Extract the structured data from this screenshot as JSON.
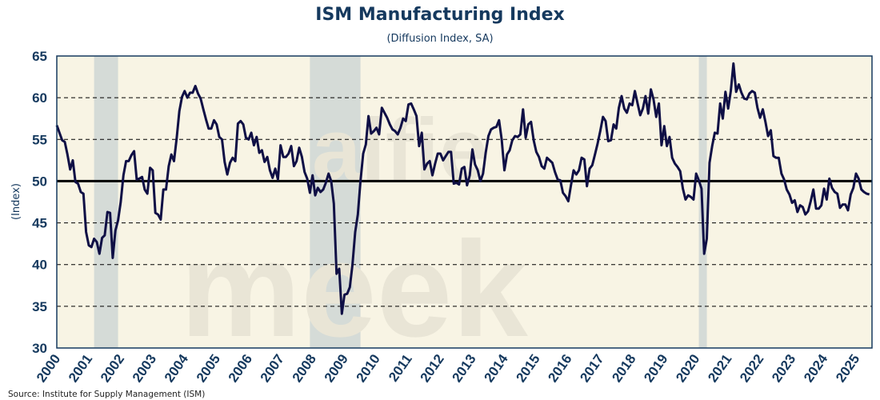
{
  "chart_data": {
    "type": "line",
    "title": "ISM Manufacturing Index",
    "subtitle": "(Diffusion Index, SA)",
    "ylabel": "(Index)",
    "xlabel": "",
    "ylim": [
      30,
      65
    ],
    "yticks": [
      30,
      35,
      40,
      45,
      50,
      55,
      60,
      65
    ],
    "xticks": [
      "2000",
      "2001",
      "2002",
      "2003",
      "2004",
      "2005",
      "2006",
      "2007",
      "2008",
      "2009",
      "2010",
      "2011",
      "2012",
      "2013",
      "2014",
      "2015",
      "2016",
      "2017",
      "2018",
      "2019",
      "2020",
      "2021",
      "2022",
      "2023",
      "2024",
      "2025"
    ],
    "x_start": "2000-01",
    "frequency": "monthly",
    "reference_line": 50,
    "grid": "dashed horizontal",
    "recessions": [
      [
        "2001-03",
        "2001-11"
      ],
      [
        "2007-12",
        "2009-06"
      ],
      [
        "2020-02",
        "2020-04"
      ]
    ],
    "series": [
      {
        "name": "ISM Manufacturing Index",
        "color": "#0f0f45",
        "values": [
          56.7,
          55.8,
          54.9,
          54.7,
          53.2,
          51.4,
          52.5,
          49.9,
          49.7,
          48.7,
          48.5,
          43.9,
          42.3,
          42.1,
          43.1,
          42.7,
          41.3,
          43.2,
          43.5,
          46.3,
          46.2,
          40.8,
          44.1,
          45.3,
          47.5,
          50.7,
          52.4,
          52.4,
          53.1,
          53.6,
          50.2,
          50.3,
          50.5,
          49.0,
          48.5,
          51.6,
          51.3,
          46.2,
          46.0,
          45.4,
          49.0,
          49.0,
          51.8,
          53.2,
          52.4,
          55.2,
          58.4,
          60.1,
          60.8,
          60.0,
          60.6,
          60.6,
          61.4,
          60.5,
          59.9,
          58.6,
          57.4,
          56.3,
          56.3,
          57.3,
          56.8,
          55.3,
          55.0,
          52.3,
          50.8,
          52.2,
          52.8,
          52.4,
          56.9,
          57.2,
          56.8,
          55.2,
          55.0,
          55.8,
          54.3,
          55.3,
          53.4,
          53.7,
          52.3,
          52.9,
          51.3,
          50.4,
          51.5,
          50.2,
          54.3,
          52.9,
          52.9,
          53.3,
          54.2,
          51.8,
          52.4,
          54.0,
          52.9,
          51.1,
          50.3,
          48.6,
          50.7,
          48.3,
          49.2,
          48.7,
          49.0,
          49.8,
          50.9,
          50.0,
          47.3,
          38.9,
          39.5,
          34.1,
          36.4,
          36.5,
          37.3,
          40.0,
          43.9,
          46.0,
          50.0,
          53.3,
          54.4,
          57.8,
          55.7,
          56.0,
          56.4,
          55.6,
          58.8,
          58.2,
          57.6,
          56.8,
          56.2,
          56.0,
          55.6,
          56.4,
          57.5,
          57.2,
          59.2,
          59.3,
          58.6,
          57.8,
          54.2,
          55.8,
          51.4,
          52.1,
          52.4,
          50.7,
          52.1,
          53.3,
          53.3,
          52.5,
          53.0,
          53.5,
          53.5,
          49.7,
          49.8,
          49.6,
          51.5,
          51.7,
          49.5,
          50.7,
          53.8,
          52.0,
          51.3,
          50.0,
          50.9,
          53.4,
          55.4,
          56.2,
          56.4,
          56.5,
          57.3,
          55.0,
          51.3,
          53.2,
          53.7,
          54.9,
          55.4,
          55.3,
          55.6,
          58.6,
          55.2,
          56.8,
          57.1,
          54.9,
          53.5,
          52.9,
          51.8,
          51.5,
          52.8,
          52.5,
          52.2,
          51.1,
          50.2,
          50.1,
          48.6,
          48.2,
          47.6,
          49.5,
          51.3,
          50.8,
          51.3,
          52.8,
          52.6,
          49.4,
          51.5,
          51.9,
          53.2,
          54.5,
          56.0,
          57.7,
          57.2,
          54.8,
          54.9,
          56.8,
          56.3,
          58.8,
          60.2,
          58.7,
          58.2,
          59.3,
          59.1,
          60.8,
          59.3,
          57.9,
          58.7,
          60.2,
          58.1,
          61.0,
          59.8,
          57.7,
          59.3,
          54.3,
          56.6,
          54.2,
          55.3,
          52.8,
          52.1,
          51.7,
          51.2,
          49.1,
          47.8,
          48.3,
          48.1,
          47.8,
          50.9,
          50.1,
          49.1,
          41.3,
          43.1,
          52.2,
          54.2,
          55.8,
          55.7,
          59.3,
          57.5,
          60.7,
          58.7,
          60.8,
          64.1,
          60.7,
          61.6,
          60.6,
          59.9,
          59.8,
          60.5,
          60.8,
          60.6,
          58.8,
          57.6,
          58.6,
          57.1,
          55.4,
          56.1,
          53.0,
          52.8,
          52.8,
          50.9,
          50.2,
          49.0,
          48.4,
          47.4,
          47.7,
          46.3,
          47.1,
          46.9,
          46.0,
          46.4,
          47.6,
          49.0,
          46.7,
          46.7,
          47.1,
          49.1,
          47.8,
          50.3,
          49.2,
          48.7,
          48.5,
          46.8,
          47.2,
          47.2,
          46.5,
          48.4,
          49.2,
          50.9,
          50.3,
          49.0,
          48.7,
          48.5,
          48.4
        ]
      }
    ]
  },
  "source": "Source: Institute for Supply Management (ISM)",
  "watermark": [
    "alfie",
    "meek"
  ],
  "colors": {
    "plot_bg": "#f8f4e4",
    "recession": "#d5dbd7",
    "axis": "#15395e",
    "line": "#0f0f45",
    "reference": "#000000"
  }
}
